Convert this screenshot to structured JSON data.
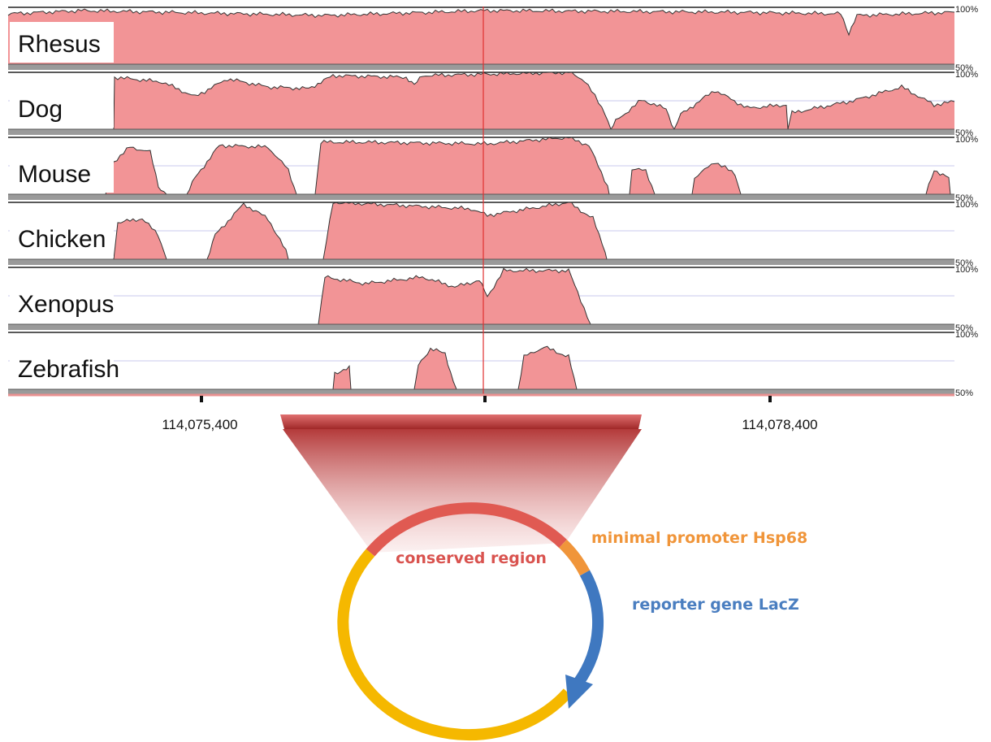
{
  "tracks": [
    {
      "label": "Rhesus",
      "top": "100%",
      "bottom": "50%"
    },
    {
      "label": "Dog",
      "top": "100%",
      "bottom": "50%"
    },
    {
      "label": "Mouse",
      "top": "100%",
      "bottom": "50%"
    },
    {
      "label": "Chicken",
      "top": "100%",
      "bottom": "50%"
    },
    {
      "label": "Xenopus",
      "top": "100%",
      "bottom": "50%"
    },
    {
      "label": "Zebrafish",
      "top": "100%",
      "bottom": "50%"
    }
  ],
  "axis": {
    "ticks": [
      "114,075,400",
      "114,078,400"
    ]
  },
  "plasmid": {
    "conserved": "conserved region",
    "promoter": "minimal promoter Hsp68",
    "reporter": "reporter gene LacZ"
  }
}
